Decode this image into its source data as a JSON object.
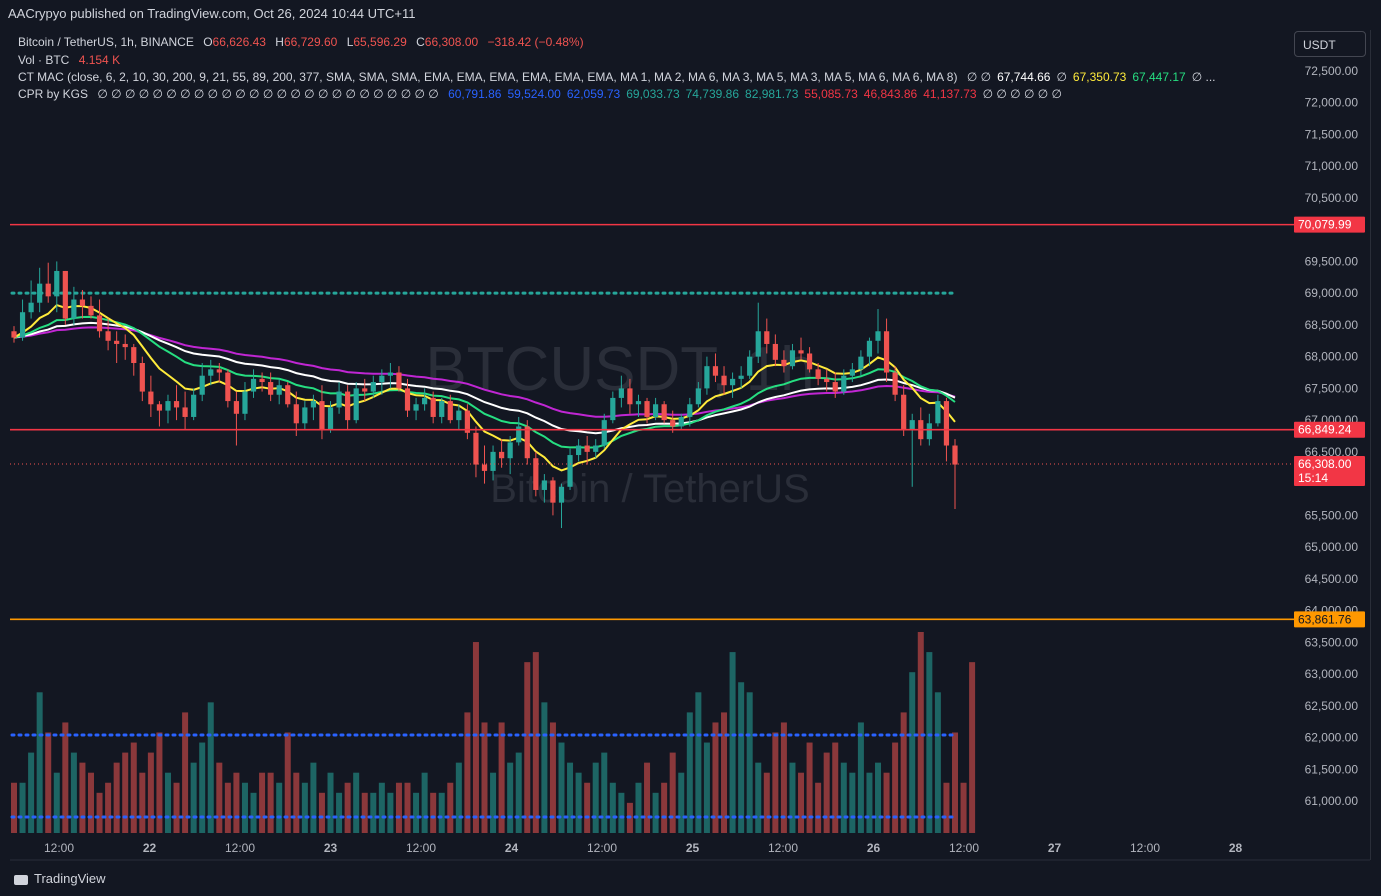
{
  "publisher": "AACrypyo published on TradingView.com, Oct 26, 2024 10:44 UTC+11",
  "legend": {
    "symbol": "Bitcoin / TetherUS, 1h, BINANCE",
    "o_label": "O",
    "o_value": "66,626.43",
    "h_label": "H",
    "h_value": "66,729.60",
    "l_label": "L",
    "l_value": "65,596.29",
    "c_label": "C",
    "c_value": "66,308.00",
    "change": "−318.42 (−0.48%)",
    "vol_label": "Vol · BTC",
    "vol_value": "4.154 K",
    "ctmac_label": "CT MAC (close, 6, 2, 10, 30, 200, 9, 21, 55, 89, 200, 377, SMA, SMA, SMA, EMA, EMA, EMA, EMA, EMA, EMA, MA 1, MA 2, MA 6, MA 3, MA 5, MA 3, MA 5, MA 6, MA 6, MA 8)",
    "ctmac_values": [
      {
        "text": "∅ ∅",
        "color": "#d1d4dc"
      },
      {
        "text": "67,744.66",
        "color": "#ffffff"
      },
      {
        "text": "∅",
        "color": "#d1d4dc"
      },
      {
        "text": "67,350.73",
        "color": "#ffeb3b"
      },
      {
        "text": "67,447.17",
        "color": "#26de81"
      },
      {
        "text": "∅ ...",
        "color": "#d1d4dc"
      }
    ],
    "cpr_label": "CPR by KGS",
    "cpr_nulls": "∅ ∅ ∅ ∅ ∅ ∅ ∅ ∅ ∅ ∅ ∅ ∅ ∅ ∅ ∅ ∅ ∅ ∅ ∅ ∅ ∅ ∅ ∅ ∅ ∅",
    "cpr_values": [
      {
        "text": "60,791.86",
        "color": "#2962ff"
      },
      {
        "text": "59,524.00",
        "color": "#2962ff"
      },
      {
        "text": "62,059.73",
        "color": "#2962ff"
      },
      {
        "text": "69,033.73",
        "color": "#26a69a"
      },
      {
        "text": "74,739.86",
        "color": "#26a69a"
      },
      {
        "text": "82,981.73",
        "color": "#26a69a"
      },
      {
        "text": "55,085.73",
        "color": "#f23645"
      },
      {
        "text": "46,843.86",
        "color": "#f23645"
      },
      {
        "text": "41,137.73",
        "color": "#f23645"
      },
      {
        "text": "∅ ∅ ∅ ∅ ∅ ∅",
        "color": "#d1d4dc"
      }
    ]
  },
  "currency_button": "USDT",
  "watermark": {
    "line1": "BTCUSDT, 1h",
    "line2": "Bitcoin / TetherUS"
  },
  "footer": "TradingView",
  "colors": {
    "background": "#131722",
    "up": "#26a69a",
    "down": "#ef5350",
    "resistance": "#f23645",
    "support": "#ff9800",
    "ma_white": "#ffffff",
    "ma_yellow": "#ffeb3b",
    "ma_green": "#26de81",
    "ma_purple": "#c026d3"
  },
  "chart_data": {
    "type": "candlestick",
    "timeframe": "1h",
    "y_axis_ticks": [
      "72,500.00",
      "72,000.00",
      "71,500.00",
      "71,000.00",
      "70,500.00",
      "69,500.00",
      "69,000.00",
      "68,500.00",
      "68,000.00",
      "67,500.00",
      "67,000.00",
      "66,500.00",
      "65,500.00",
      "65,000.00",
      "64,500.00",
      "64,000.00",
      "63,500.00",
      "63,000.00",
      "62,500.00",
      "62,000.00",
      "61,500.00",
      "61,000.00"
    ],
    "x_axis_ticks": [
      "12:00",
      "22",
      "12:00",
      "23",
      "12:00",
      "24",
      "12:00",
      "25",
      "12:00",
      "26",
      "12:00",
      "27",
      "12:00",
      "28"
    ],
    "ylim": [
      60500,
      72900
    ],
    "price_lines": [
      {
        "label": "70,079.99",
        "value": 70079.99,
        "color": "#f23645"
      },
      {
        "label": "66,849.24",
        "value": 66849.24,
        "color": "#f23645"
      },
      {
        "label": "63,861.76",
        "value": 63861.76,
        "color": "#ff9800"
      }
    ],
    "current_price": {
      "label": "66,308.00",
      "countdown": "15:14",
      "value": 66308
    },
    "cpr_dotted_levels": [
      {
        "value": 69000,
        "color": "#26a69a"
      }
    ],
    "volume_average_color": "#2962ff",
    "candles": [
      [
        68400,
        68480,
        68220,
        68300
      ],
      [
        68300,
        68900,
        68250,
        68700
      ],
      [
        68700,
        69200,
        68600,
        68850
      ],
      [
        68850,
        69400,
        68700,
        69150
      ],
      [
        69150,
        69480,
        68850,
        68950
      ],
      [
        68950,
        69500,
        68700,
        69350
      ],
      [
        69350,
        69350,
        68500,
        68600
      ],
      [
        68600,
        69100,
        68500,
        68900
      ],
      [
        68900,
        69050,
        68600,
        68800
      ],
      [
        68800,
        68950,
        68600,
        68650
      ],
      [
        68650,
        68900,
        68300,
        68400
      ],
      [
        68400,
        68600,
        68100,
        68250
      ],
      [
        68250,
        68400,
        67900,
        68200
      ],
      [
        68200,
        68350,
        67950,
        68150
      ],
      [
        68150,
        68200,
        67700,
        67900
      ],
      [
        67900,
        68000,
        67300,
        67450
      ],
      [
        67450,
        67700,
        67050,
        67250
      ],
      [
        67250,
        67300,
        66900,
        67150
      ],
      [
        67150,
        67400,
        66950,
        67300
      ],
      [
        67300,
        67550,
        67000,
        67200
      ],
      [
        67200,
        67450,
        66850,
        67050
      ],
      [
        67050,
        67500,
        67000,
        67400
      ],
      [
        67400,
        67900,
        67300,
        67700
      ],
      [
        67700,
        67950,
        67550,
        67800
      ],
      [
        67800,
        67900,
        67600,
        67750
      ],
      [
        67750,
        67800,
        67200,
        67300
      ],
      [
        67300,
        67450,
        66600,
        67100
      ],
      [
        67100,
        67600,
        67000,
        67450
      ],
      [
        67450,
        67800,
        67350,
        67650
      ],
      [
        67650,
        67750,
        67450,
        67600
      ],
      [
        67600,
        67750,
        67300,
        67400
      ],
      [
        67400,
        67650,
        67250,
        67550
      ],
      [
        67550,
        67600,
        67200,
        67250
      ],
      [
        67250,
        67450,
        66750,
        66950
      ],
      [
        66950,
        67300,
        66850,
        67200
      ],
      [
        67200,
        67400,
        67000,
        67300
      ],
      [
        67300,
        67550,
        66700,
        66850
      ],
      [
        66850,
        67300,
        66800,
        67200
      ],
      [
        67200,
        67600,
        67100,
        67450
      ],
      [
        67450,
        67550,
        66850,
        67000
      ],
      [
        67000,
        67600,
        66950,
        67500
      ],
      [
        67500,
        67650,
        67300,
        67450
      ],
      [
        67450,
        67700,
        67350,
        67600
      ],
      [
        67600,
        67800,
        67400,
        67700
      ],
      [
        67700,
        67900,
        67500,
        67750
      ],
      [
        67750,
        67850,
        67450,
        67500
      ],
      [
        67500,
        67650,
        67050,
        67150
      ],
      [
        67150,
        67350,
        67000,
        67250
      ],
      [
        67250,
        67500,
        67150,
        67350
      ],
      [
        67350,
        67450,
        66950,
        67050
      ],
      [
        67050,
        67350,
        66950,
        67300
      ],
      [
        67300,
        67400,
        66950,
        67000
      ],
      [
        67000,
        67250,
        66850,
        67150
      ],
      [
        67150,
        67250,
        66700,
        66800
      ],
      [
        66800,
        66900,
        66100,
        66300
      ],
      [
        66300,
        66600,
        66000,
        66200
      ],
      [
        66200,
        66600,
        66050,
        66500
      ],
      [
        66500,
        66700,
        66250,
        66400
      ],
      [
        66400,
        66750,
        66150,
        66650
      ],
      [
        66650,
        67050,
        66600,
        66900
      ],
      [
        66900,
        67000,
        66300,
        66400
      ],
      [
        66400,
        66500,
        65800,
        65900
      ],
      [
        65900,
        66150,
        65700,
        66050
      ],
      [
        66050,
        66100,
        65500,
        65700
      ],
      [
        65700,
        66000,
        65300,
        65950
      ],
      [
        65950,
        66550,
        65900,
        66450
      ],
      [
        66450,
        66700,
        66350,
        66600
      ],
      [
        66600,
        66750,
        66300,
        66500
      ],
      [
        66500,
        66700,
        66400,
        66600
      ],
      [
        66600,
        67100,
        66550,
        67000
      ],
      [
        67000,
        67450,
        66950,
        67350
      ],
      [
        67350,
        67700,
        67200,
        67500
      ],
      [
        67500,
        67650,
        67100,
        67250
      ],
      [
        67250,
        67400,
        67050,
        67300
      ],
      [
        67300,
        67350,
        66950,
        67050
      ],
      [
        67050,
        67350,
        67000,
        67250
      ],
      [
        67250,
        67300,
        66950,
        67000
      ],
      [
        67000,
        67150,
        66800,
        66900
      ],
      [
        66900,
        67100,
        66850,
        67050
      ],
      [
        67050,
        67350,
        66900,
        67250
      ],
      [
        67250,
        67600,
        67200,
        67500
      ],
      [
        67500,
        68000,
        67400,
        67850
      ],
      [
        67850,
        68050,
        67600,
        67700
      ],
      [
        67700,
        67850,
        67400,
        67550
      ],
      [
        67550,
        67750,
        67350,
        67650
      ],
      [
        67650,
        67850,
        67500,
        67700
      ],
      [
        67700,
        68100,
        67650,
        68000
      ],
      [
        68000,
        68850,
        67900,
        68400
      ],
      [
        68400,
        68600,
        68050,
        68200
      ],
      [
        68200,
        68350,
        67850,
        67950
      ],
      [
        67950,
        68100,
        67750,
        67850
      ],
      [
        67850,
        68200,
        67800,
        68100
      ],
      [
        68100,
        68300,
        67950,
        68050
      ],
      [
        68050,
        68150,
        67750,
        67800
      ],
      [
        67800,
        67900,
        67550,
        67650
      ],
      [
        67650,
        67800,
        67450,
        67600
      ],
      [
        67600,
        67750,
        67350,
        67450
      ],
      [
        67450,
        67800,
        67400,
        67700
      ],
      [
        67700,
        67900,
        67600,
        67800
      ],
      [
        67800,
        68100,
        67700,
        68000
      ],
      [
        68000,
        68300,
        67850,
        68250
      ],
      [
        68250,
        68750,
        68050,
        68400
      ],
      [
        68400,
        68600,
        67600,
        67750
      ],
      [
        67750,
        67850,
        67300,
        67400
      ],
      [
        67400,
        67550,
        66750,
        66850
      ],
      [
        66850,
        67100,
        65950,
        67000
      ],
      [
        67000,
        67200,
        66600,
        66700
      ],
      [
        66700,
        67100,
        66600,
        66950
      ],
      [
        66950,
        67400,
        66900,
        67300
      ],
      [
        67300,
        67350,
        66350,
        66600
      ],
      [
        66600,
        66700,
        65600,
        66300
      ]
    ],
    "volumes": [
      5,
      5,
      8,
      14,
      10,
      6,
      11,
      8,
      7,
      6,
      4,
      5,
      7,
      8,
      9,
      6,
      8,
      10,
      6,
      5,
      12,
      7,
      9,
      13,
      7,
      5,
      6,
      5,
      4,
      6,
      6,
      5,
      10,
      6,
      5,
      7,
      4,
      6,
      4,
      5,
      6,
      4,
      4,
      5,
      4,
      5,
      5,
      4,
      6,
      4,
      4,
      5,
      7,
      12,
      19,
      11,
      6,
      11,
      7,
      8,
      17,
      18,
      13,
      11,
      9,
      7,
      6,
      5,
      7,
      8,
      5,
      4,
      3,
      5,
      7,
      4,
      5,
      8,
      6,
      12,
      14,
      9,
      11,
      12,
      18,
      15,
      14,
      7,
      6,
      10,
      11,
      7,
      6,
      9,
      5,
      8,
      9,
      7,
      6,
      11,
      6,
      7,
      6,
      9,
      12,
      16,
      20,
      18,
      14,
      5,
      10,
      5,
      17
    ]
  }
}
